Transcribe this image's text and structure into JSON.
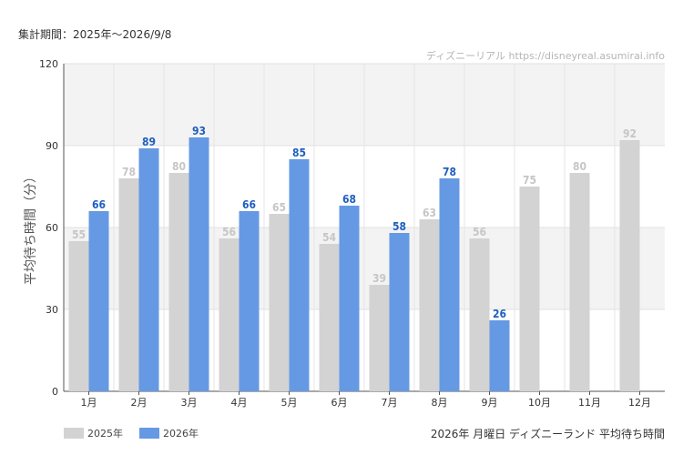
{
  "header": {
    "period_label": "集計期間：2025年～2026/9/8",
    "credit": "ディズニーリアル https://disneyreal.asumirai.info"
  },
  "footer": {
    "caption": "2026年 月曜日 ディズニーランド 平均待ち時間"
  },
  "colors": {
    "series_2025": "#d3d3d3",
    "series_2026": "#6699e3",
    "label_2025": "#c6c6c6",
    "label_2026": "#1f5fc0",
    "band": "#f3f3f3"
  },
  "chart_data": {
    "type": "bar",
    "title": "",
    "xlabel": "",
    "ylabel": "平均待ち時間（分）",
    "ylim": [
      0,
      120
    ],
    "yticks": [
      0,
      30,
      60,
      90,
      120
    ],
    "grid": true,
    "legend_position": "bottom-left",
    "categories": [
      "1月",
      "2月",
      "3月",
      "4月",
      "5月",
      "6月",
      "7月",
      "8月",
      "9月",
      "10月",
      "11月",
      "12月"
    ],
    "series": [
      {
        "name": "2025年",
        "values": [
          55,
          78,
          80,
          56,
          65,
          54,
          39,
          63,
          56,
          75,
          80,
          92
        ]
      },
      {
        "name": "2026年",
        "values": [
          66,
          89,
          93,
          66,
          85,
          68,
          58,
          78,
          26,
          null,
          null,
          null
        ]
      }
    ]
  }
}
